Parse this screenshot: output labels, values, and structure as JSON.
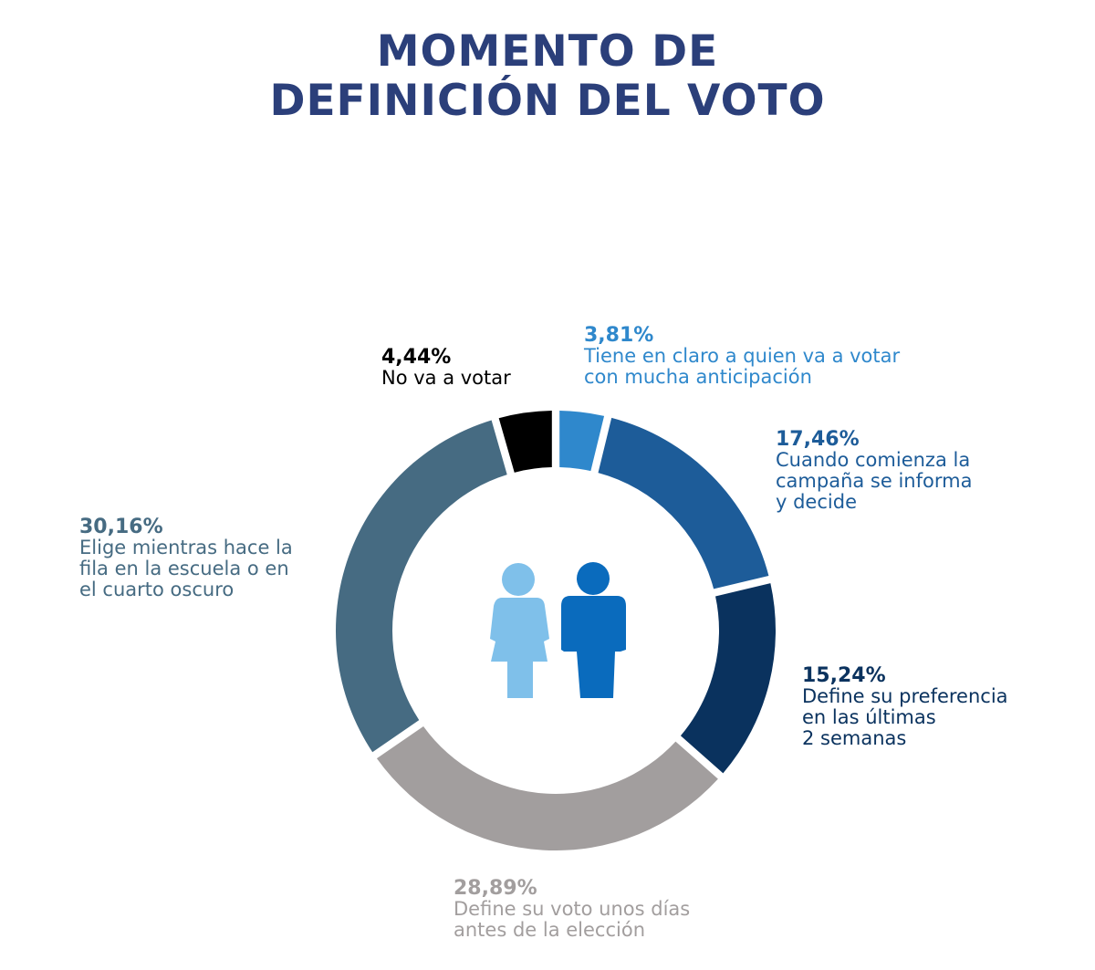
{
  "chart_data": {
    "type": "pie",
    "donut": true,
    "title": [
      "MOMENTO DE",
      "DEFINICIÓN DEL VOTO"
    ],
    "slices": [
      {
        "pct_label": "3,81%",
        "value": 3.81,
        "label": [
          "Tiene en claro a quien va a votar",
          "con mucha anticipación"
        ],
        "color": "#2f88cc",
        "text_color": "#2f88cc"
      },
      {
        "pct_label": "17,46%",
        "value": 17.46,
        "label": [
          "Cuando comienza la",
          "campaña se informa",
          "y decide"
        ],
        "color": "#1d5c99",
        "text_color": "#1d5c99"
      },
      {
        "pct_label": "15,24%",
        "value": 15.24,
        "label": [
          "Define su preferencia",
          "en las últimas",
          "2 semanas"
        ],
        "color": "#0a325e",
        "text_color": "#0a325e"
      },
      {
        "pct_label": "28,89%",
        "value": 28.89,
        "label": [
          "Define su voto unos días",
          "antes de la elección"
        ],
        "color": "#a29e9e",
        "text_color": "#a29e9e"
      },
      {
        "pct_label": "30,16%",
        "value": 30.16,
        "label": [
          "Elige mientras hace la",
          "fila en la escuela o en",
          "el cuarto oscuro"
        ],
        "color": "#466b82",
        "text_color": "#466b82"
      },
      {
        "pct_label": "4,44%",
        "value": 4.44,
        "label": [
          "No va a votar"
        ],
        "color": "#000000",
        "text_color": "#000000"
      }
    ],
    "center_icons": [
      {
        "icon": "woman-icon",
        "color": "#7fc0ea"
      },
      {
        "icon": "man-icon",
        "color": "#0a6bbd"
      }
    ]
  }
}
